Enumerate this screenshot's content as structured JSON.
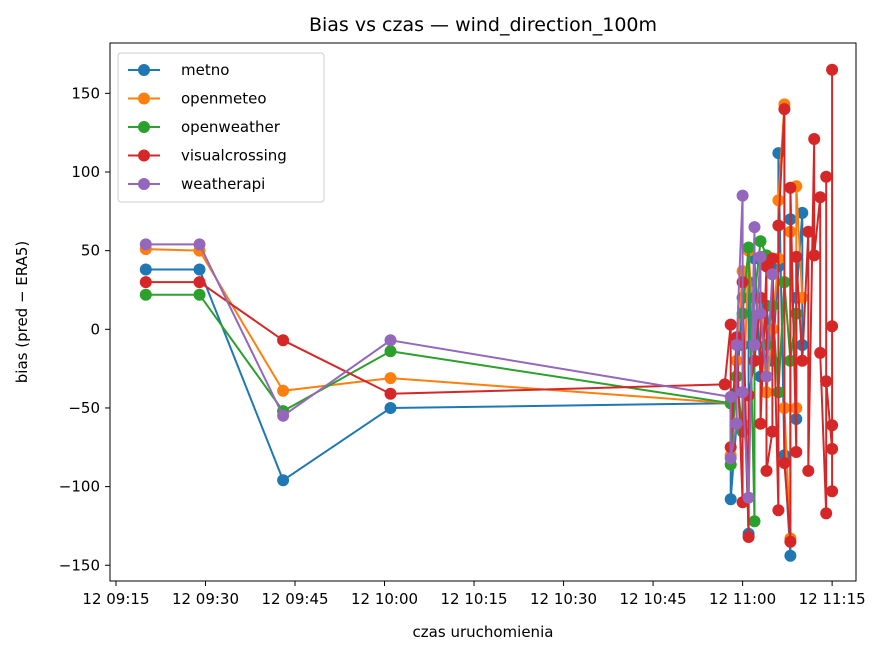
{
  "chart_data": {
    "type": "line",
    "title": "Bias vs czas — wind_direction_100m",
    "xlabel": "czas uruchomienia",
    "ylabel": "bias (pred − ERA5)",
    "xlim": [
      "09:14",
      "11:19"
    ],
    "ylim": [
      -160,
      182
    ],
    "x_ticks": [
      {
        "t": "09:15",
        "label": "12 09:15"
      },
      {
        "t": "09:30",
        "label": "12 09:30"
      },
      {
        "t": "09:45",
        "label": "12 09:45"
      },
      {
        "t": "10:00",
        "label": "12 10:00"
      },
      {
        "t": "10:15",
        "label": "12 10:15"
      },
      {
        "t": "10:30",
        "label": "12 10:30"
      },
      {
        "t": "10:45",
        "label": "12 10:45"
      },
      {
        "t": "11:00",
        "label": "12 11:00"
      },
      {
        "t": "11:15",
        "label": "12 11:15"
      }
    ],
    "y_ticks": [
      -150,
      -100,
      -50,
      0,
      50,
      100,
      150
    ],
    "grid": false,
    "legend": "top-left",
    "series": [
      {
        "name": "metno",
        "color": "#1f77b4",
        "points": [
          [
            "09:20",
            38
          ],
          [
            "09:29",
            38
          ],
          [
            "09:43",
            -96
          ],
          [
            "10:01",
            -50
          ],
          [
            "10:58",
            -47
          ],
          [
            "10:58",
            -108
          ],
          [
            "10:59",
            -60
          ],
          [
            "10:59",
            -40
          ],
          [
            "11:00",
            20
          ],
          [
            "11:00",
            -10
          ],
          [
            "11:01",
            -130
          ],
          [
            "11:01",
            30
          ],
          [
            "11:02",
            -20
          ],
          [
            "11:02",
            45
          ],
          [
            "11:03",
            -30
          ],
          [
            "11:04",
            15
          ],
          [
            "11:05",
            -20
          ],
          [
            "11:06",
            40
          ],
          [
            "11:06",
            112
          ],
          [
            "11:07",
            -80
          ],
          [
            "11:08",
            -144
          ],
          [
            "11:08",
            70
          ],
          [
            "11:09",
            -57
          ],
          [
            "11:09",
            20
          ],
          [
            "11:10",
            74
          ],
          [
            "11:10",
            -10
          ]
        ]
      },
      {
        "name": "openmeteo",
        "color": "#ff7f0e",
        "points": [
          [
            "09:20",
            51
          ],
          [
            "09:29",
            50
          ],
          [
            "09:43",
            -39
          ],
          [
            "10:01",
            -31
          ],
          [
            "10:58",
            -47
          ],
          [
            "10:58",
            -80
          ],
          [
            "10:59",
            -20
          ],
          [
            "11:00",
            37
          ],
          [
            "11:00",
            -60
          ],
          [
            "11:01",
            50
          ],
          [
            "11:02",
            -10
          ],
          [
            "11:03",
            20
          ],
          [
            "11:04",
            -40
          ],
          [
            "11:05",
            0
          ],
          [
            "11:06",
            45
          ],
          [
            "11:06",
            82
          ],
          [
            "11:07",
            143
          ],
          [
            "11:07",
            -50
          ],
          [
            "11:08",
            -133
          ],
          [
            "11:08",
            62
          ],
          [
            "11:09",
            -50
          ],
          [
            "11:09",
            91
          ],
          [
            "11:10",
            20
          ]
        ]
      },
      {
        "name": "openweather",
        "color": "#2ca02c",
        "points": [
          [
            "09:20",
            22
          ],
          [
            "09:29",
            22
          ],
          [
            "09:43",
            -52
          ],
          [
            "10:01",
            -14
          ],
          [
            "10:58",
            -47
          ],
          [
            "10:58",
            -86
          ],
          [
            "10:59",
            -30
          ],
          [
            "11:00",
            -65
          ],
          [
            "11:00",
            10
          ],
          [
            "11:01",
            52
          ],
          [
            "11:02",
            -122
          ],
          [
            "11:02",
            20
          ],
          [
            "11:03",
            56
          ],
          [
            "11:04",
            47
          ],
          [
            "11:04",
            -10
          ],
          [
            "11:05",
            15
          ],
          [
            "11:06",
            -40
          ],
          [
            "11:07",
            30
          ],
          [
            "11:08",
            -20
          ],
          [
            "11:09",
            10
          ]
        ]
      },
      {
        "name": "visualcrossing",
        "color": "#d62728",
        "points": [
          [
            "09:20",
            30
          ],
          [
            "09:29",
            30
          ],
          [
            "09:43",
            -7
          ],
          [
            "10:01",
            -41
          ],
          [
            "10:57",
            -35
          ],
          [
            "10:58",
            3
          ],
          [
            "10:58",
            -75
          ],
          [
            "10:59",
            -5
          ],
          [
            "11:00",
            -110
          ],
          [
            "11:00",
            30
          ],
          [
            "11:01",
            -132
          ],
          [
            "11:01",
            -42
          ],
          [
            "11:02",
            -20
          ],
          [
            "11:03",
            20
          ],
          [
            "11:03",
            -60
          ],
          [
            "11:04",
            40
          ],
          [
            "11:04",
            -90
          ],
          [
            "11:05",
            -65
          ],
          [
            "11:05",
            45
          ],
          [
            "11:06",
            -115
          ],
          [
            "11:06",
            66
          ],
          [
            "11:07",
            140
          ],
          [
            "11:07",
            -85
          ],
          [
            "11:08",
            -135
          ],
          [
            "11:08",
            90
          ],
          [
            "11:09",
            -78
          ],
          [
            "11:09",
            46
          ],
          [
            "11:10",
            -20
          ],
          [
            "11:11",
            62
          ],
          [
            "11:11",
            -90
          ],
          [
            "11:12",
            121
          ],
          [
            "11:12",
            47
          ],
          [
            "11:13",
            84
          ],
          [
            "11:13",
            -15
          ],
          [
            "11:14",
            -117
          ],
          [
            "11:14",
            97
          ],
          [
            "11:14",
            -33
          ],
          [
            "11:15",
            -76
          ],
          [
            "11:15",
            2
          ],
          [
            "11:15",
            -61
          ],
          [
            "11:15",
            -103
          ],
          [
            "11:15",
            165
          ]
        ]
      },
      {
        "name": "weatherapi",
        "color": "#9467bd",
        "points": [
          [
            "09:20",
            54
          ],
          [
            "09:29",
            54
          ],
          [
            "09:43",
            -55
          ],
          [
            "10:01",
            -7
          ],
          [
            "10:58",
            -43
          ],
          [
            "10:58",
            -82
          ],
          [
            "10:59",
            -60
          ],
          [
            "10:59",
            -10
          ],
          [
            "11:00",
            85
          ],
          [
            "11:00",
            -40
          ],
          [
            "11:01",
            -107
          ],
          [
            "11:02",
            65
          ],
          [
            "11:02",
            -10
          ],
          [
            "11:03",
            46
          ],
          [
            "11:03",
            10
          ],
          [
            "11:04",
            -30
          ],
          [
            "11:05",
            35
          ]
        ]
      }
    ]
  }
}
